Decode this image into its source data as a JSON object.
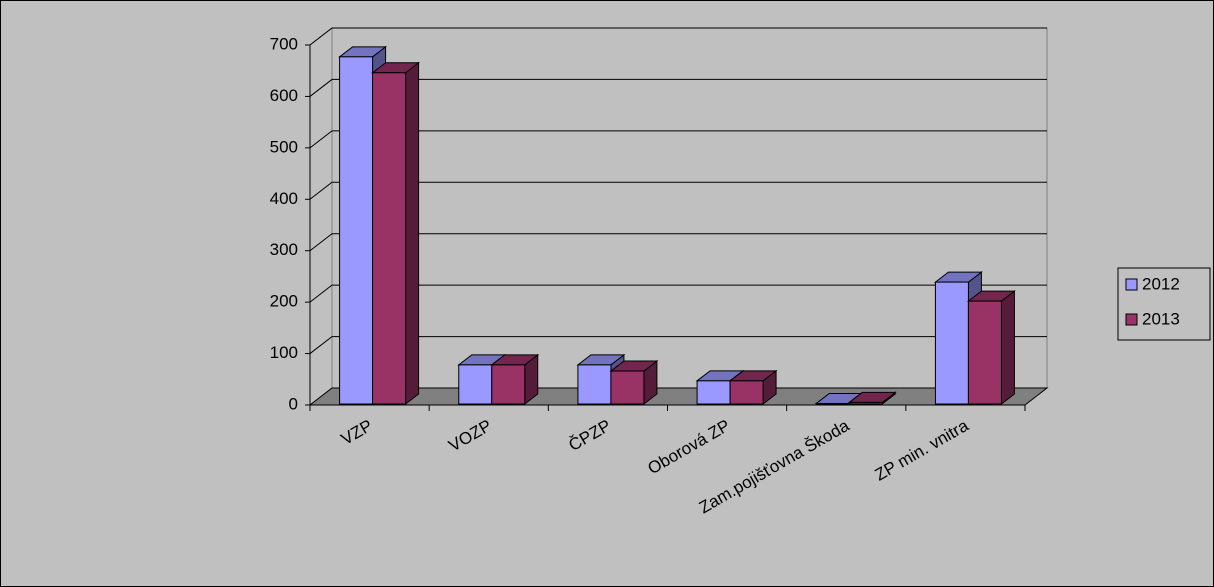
{
  "chart_data": {
    "type": "bar3d",
    "categories": [
      "VZP",
      "VOZP",
      "ČPZP",
      "Oborová ZP",
      "Zam.pojišťovna Škoda",
      "ZP min. vnitra"
    ],
    "series": [
      {
        "name": "2012",
        "color": "#9999ff",
        "values": [
          677,
          78,
          78,
          47,
          3,
          239
        ]
      },
      {
        "name": "2013",
        "color": "#993366",
        "values": [
          646,
          78,
          66,
          47,
          5,
          202
        ]
      }
    ],
    "ylim": [
      0,
      700
    ],
    "yticks": [
      0,
      100,
      200,
      300,
      400,
      500,
      600,
      700
    ],
    "grid": true,
    "legend": "right"
  }
}
